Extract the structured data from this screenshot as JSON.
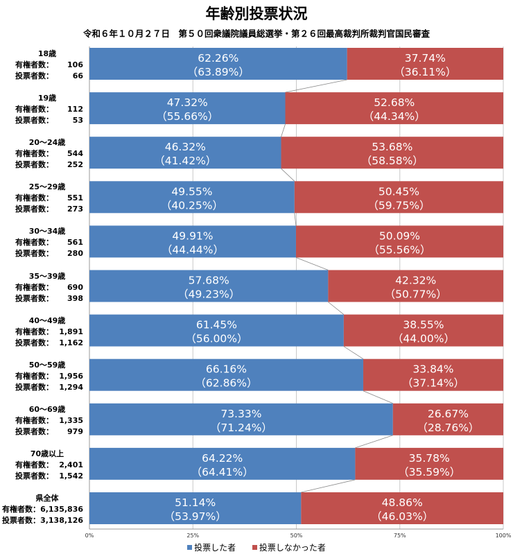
{
  "title": "年齢別投票状況",
  "subtitle": "令和６年１０月２７日　第５０回衆議院議員総選挙・第２６回最高裁判所裁判官国民審査",
  "labels": {
    "voters_prefix": "有権者数：",
    "votes_prefix": "投票者数："
  },
  "colors": {
    "voted": "#4f81bd",
    "not_voted": "#c0504d"
  },
  "chart_data": {
    "type": "bar",
    "orientation": "horizontal",
    "stacked": "100%",
    "xlim": [
      0,
      100
    ],
    "x_ticks": [
      "0%",
      "25%",
      "50%",
      "75%",
      "100%"
    ],
    "legend_position": "bottom",
    "series": [
      {
        "name": "投票した者",
        "color": "#4f81bd"
      },
      {
        "name": "投票しなかった者",
        "color": "#c0504d"
      }
    ],
    "rows": [
      {
        "category": "18歳",
        "voters": "106",
        "votes": "66",
        "voted": 62.26,
        "voted_prev": 63.89,
        "not_voted": 37.74,
        "not_voted_prev": 36.11,
        "voted_label": "62.26%",
        "voted_prev_label": "（63.89%）",
        "not_voted_label": "37.74%",
        "not_voted_prev_label": "（36.11%）"
      },
      {
        "category": "19歳",
        "voters": "112",
        "votes": "53",
        "voted": 47.32,
        "voted_prev": 55.66,
        "not_voted": 52.68,
        "not_voted_prev": 44.34,
        "voted_label": "47.32%",
        "voted_prev_label": "（55.66%）",
        "not_voted_label": "52.68%",
        "not_voted_prev_label": "（44.34%）"
      },
      {
        "category": "20～24歳",
        "voters": "544",
        "votes": "252",
        "voted": 46.32,
        "voted_prev": 41.42,
        "not_voted": 53.68,
        "not_voted_prev": 58.58,
        "voted_label": "46.32%",
        "voted_prev_label": "（41.42%）",
        "not_voted_label": "53.68%",
        "not_voted_prev_label": "（58.58%）"
      },
      {
        "category": "25～29歳",
        "voters": "551",
        "votes": "273",
        "voted": 49.55,
        "voted_prev": 40.25,
        "not_voted": 50.45,
        "not_voted_prev": 59.75,
        "voted_label": "49.55%",
        "voted_prev_label": "（40.25%）",
        "not_voted_label": "50.45%",
        "not_voted_prev_label": "（59.75%）"
      },
      {
        "category": "30～34歳",
        "voters": "561",
        "votes": "280",
        "voted": 49.91,
        "voted_prev": 44.44,
        "not_voted": 50.09,
        "not_voted_prev": 55.56,
        "voted_label": "49.91%",
        "voted_prev_label": "（44.44%）",
        "not_voted_label": "50.09%",
        "not_voted_prev_label": "（55.56%）"
      },
      {
        "category": "35～39歳",
        "voters": "690",
        "votes": "398",
        "voted": 57.68,
        "voted_prev": 49.23,
        "not_voted": 42.32,
        "not_voted_prev": 50.77,
        "voted_label": "57.68%",
        "voted_prev_label": "（49.23%）",
        "not_voted_label": "42.32%",
        "not_voted_prev_label": "（50.77%）"
      },
      {
        "category": "40～49歳",
        "voters": "1,891",
        "votes": "1,162",
        "voted": 61.45,
        "voted_prev": 56.0,
        "not_voted": 38.55,
        "not_voted_prev": 44.0,
        "voted_label": "61.45%",
        "voted_prev_label": "（56.00%）",
        "not_voted_label": "38.55%",
        "not_voted_prev_label": "（44.00%）"
      },
      {
        "category": "50～59歳",
        "voters": "1,956",
        "votes": "1,294",
        "voted": 66.16,
        "voted_prev": 62.86,
        "not_voted": 33.84,
        "not_voted_prev": 37.14,
        "voted_label": "66.16%",
        "voted_prev_label": "（62.86%）",
        "not_voted_label": "33.84%",
        "not_voted_prev_label": "（37.14%）"
      },
      {
        "category": "60～69歳",
        "voters": "1,335",
        "votes": "979",
        "voted": 73.33,
        "voted_prev": 71.24,
        "not_voted": 26.67,
        "not_voted_prev": 28.76,
        "voted_label": "73.33%",
        "voted_prev_label": "（71.24%）",
        "not_voted_label": "26.67%",
        "not_voted_prev_label": "（28.76%）"
      },
      {
        "category": "70歳以上",
        "voters": "2,401",
        "votes": "1,542",
        "voted": 64.22,
        "voted_prev": 64.41,
        "not_voted": 35.78,
        "not_voted_prev": 35.59,
        "voted_label": "64.22%",
        "voted_prev_label": "（64.41%）",
        "not_voted_label": "35.78%",
        "not_voted_prev_label": "（35.59%）"
      },
      {
        "category": "県全体",
        "voters": "6,135,836",
        "votes": "3,138,126",
        "voted": 51.14,
        "voted_prev": 53.97,
        "not_voted": 48.86,
        "not_voted_prev": 46.03,
        "voted_label": "51.14%",
        "voted_prev_label": "（53.97%）",
        "not_voted_label": "48.86%",
        "not_voted_prev_label": "（46.03%）"
      }
    ]
  }
}
